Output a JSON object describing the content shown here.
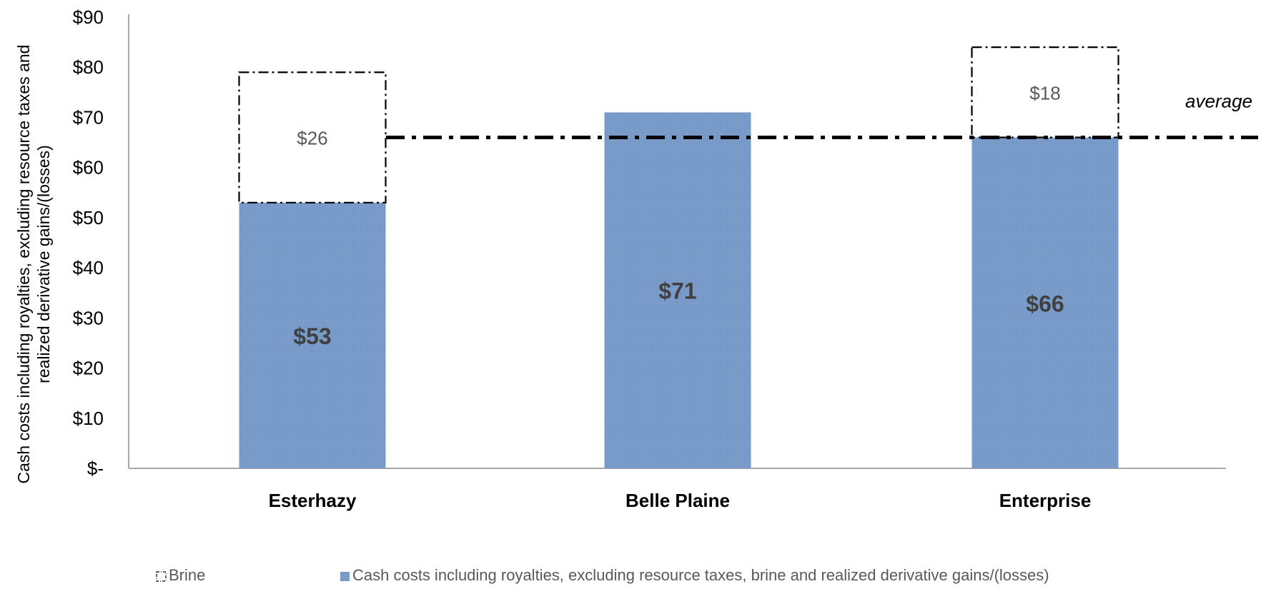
{
  "chart_data": {
    "type": "bar",
    "stacked": true,
    "categories": [
      "Esterhazy",
      "Belle Plaine",
      "Enterprise"
    ],
    "ylabel_lines": [
      "Cash costs including royalties, excluding resource taxes and",
      "realized derivative gains/(losses)"
    ],
    "ylim": [
      0,
      90
    ],
    "y_ticks": [
      0,
      10,
      20,
      30,
      40,
      50,
      60,
      70,
      80,
      90
    ],
    "y_tick_labels": [
      "$-",
      "$10",
      "$20",
      "$30",
      "$40",
      "$50",
      "$60",
      "$70",
      "$80",
      "$90"
    ],
    "series": [
      {
        "name": "Cash costs including royalties, excluding resource taxes, brine and realized derivative gains/(losses)",
        "values": [
          53,
          71,
          66
        ],
        "data_labels": [
          "$53",
          "$71",
          "$66"
        ],
        "color": "#7399C6",
        "style": "solid"
      },
      {
        "name": "Brine",
        "values": [
          26,
          null,
          18
        ],
        "data_labels": [
          "$26",
          "",
          "$18"
        ],
        "color": "#000000",
        "style": "dash-dot outline"
      }
    ],
    "average": {
      "label": "average",
      "value": 66
    },
    "legend_position": "bottom",
    "grid": false
  }
}
